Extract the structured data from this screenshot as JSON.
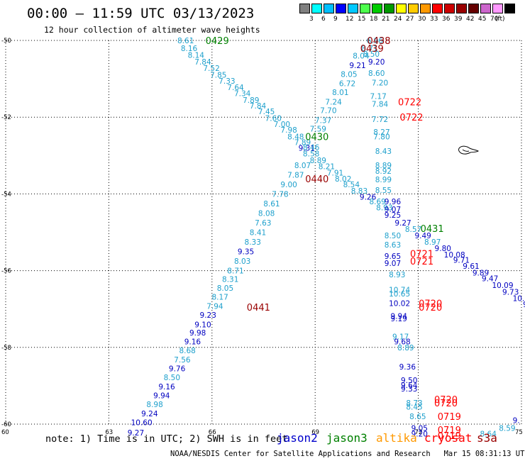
{
  "header": {
    "title": "00:00 – 11:59 UTC 03/13/2023",
    "subtitle": "12 hour collection of altimeter wave heights"
  },
  "colorbar": {
    "unit": "(ft)",
    "colors": [
      "#808080",
      "#00ffff",
      "#00bfff",
      "#0000ff",
      "#00c8ff",
      "#4cff4c",
      "#00cc00",
      "#009900",
      "#ffff00",
      "#ffcc00",
      "#ff9900",
      "#ff0000",
      "#cc0000",
      "#990000",
      "#660000",
      "#cc66cc",
      "#ff99ff",
      "#000000"
    ],
    "labels": [
      "3",
      "6",
      "9",
      "12",
      "15",
      "18",
      "21",
      "24",
      "27",
      "30",
      "33",
      "36",
      "39",
      "42",
      "45",
      "70"
    ]
  },
  "axes": {
    "lat_labels": [
      "-50",
      "-52",
      "-54",
      "-56",
      "-58",
      "-60"
    ],
    "lon_labels": [
      "60",
      "63",
      "66",
      "69",
      "72",
      "75"
    ]
  },
  "map_colors": {
    "cyan": "#1ea0cc",
    "blue": "#0000c0",
    "green": "#008000",
    "red": "#ff0000",
    "darkred": "#990000"
  },
  "passes": [
    {
      "text": "0429",
      "color": "green",
      "lon": 66.1,
      "lat": -50.0
    },
    {
      "text": "0438",
      "color": "darkred",
      "lon": 70.8,
      "lat": -50.0
    },
    {
      "text": "0439",
      "color": "darkred",
      "lon": 70.6,
      "lat": -50.2
    },
    {
      "text": "0722",
      "color": "red",
      "lon": 71.7,
      "lat": -51.6
    },
    {
      "text": "0722",
      "color": "red",
      "lon": 71.75,
      "lat": -52.0
    },
    {
      "text": "0430",
      "color": "green",
      "lon": 69.0,
      "lat": -52.5
    },
    {
      "text": "0440",
      "color": "darkred",
      "lon": 69.0,
      "lat": -53.6
    },
    {
      "text": "0431",
      "color": "green",
      "lon": 72.35,
      "lat": -54.9
    },
    {
      "text": "0721",
      "color": "red",
      "lon": 72.05,
      "lat": -55.55
    },
    {
      "text": "0721",
      "color": "red",
      "lon": 72.05,
      "lat": -55.75
    },
    {
      "text": "0441",
      "color": "darkred",
      "lon": 67.3,
      "lat": -56.95
    },
    {
      "text": "0720",
      "color": "red",
      "lon": 72.3,
      "lat": -56.85
    },
    {
      "text": "0720",
      "color": "red",
      "lon": 72.3,
      "lat": -56.95
    },
    {
      "text": "0720",
      "color": "red",
      "lon": 72.75,
      "lat": -59.35
    },
    {
      "text": "0720",
      "color": "red",
      "lon": 72.75,
      "lat": -59.45
    },
    {
      "text": "0719",
      "color": "red",
      "lon": 72.85,
      "lat": -59.8
    },
    {
      "text": "0719",
      "color": "red",
      "lon": 72.85,
      "lat": -60.15
    },
    {
      "text": "0719",
      "color": "red",
      "lon": 72.85,
      "lat": -60.3
    }
  ],
  "points": [
    {
      "v": "8.61",
      "c": "cyan",
      "lon": 65.2,
      "lat": -50.0
    },
    {
      "v": "8.16",
      "c": "cyan",
      "lon": 65.3,
      "lat": -50.2
    },
    {
      "v": "8.14",
      "c": "cyan",
      "lon": 65.5,
      "lat": -50.38
    },
    {
      "v": "7.84",
      "c": "cyan",
      "lon": 65.7,
      "lat": -50.55
    },
    {
      "v": "7.52",
      "c": "cyan",
      "lon": 65.95,
      "lat": -50.72
    },
    {
      "v": "7.85",
      "c": "cyan",
      "lon": 66.15,
      "lat": -50.9
    },
    {
      "v": "7.33",
      "c": "cyan",
      "lon": 66.4,
      "lat": -51.05
    },
    {
      "v": "7.64",
      "c": "cyan",
      "lon": 66.65,
      "lat": -51.22
    },
    {
      "v": "7.34",
      "c": "cyan",
      "lon": 66.85,
      "lat": -51.38
    },
    {
      "v": "7.89",
      "c": "cyan",
      "lon": 67.1,
      "lat": -51.55
    },
    {
      "v": "7.84",
      "c": "cyan",
      "lon": 67.3,
      "lat": -51.7
    },
    {
      "v": "7.45",
      "c": "cyan",
      "lon": 67.55,
      "lat": -51.85
    },
    {
      "v": "7.60",
      "c": "cyan",
      "lon": 67.75,
      "lat": -52.02
    },
    {
      "v": "7.00",
      "c": "cyan",
      "lon": 68.0,
      "lat": -52.18
    },
    {
      "v": "7.98",
      "c": "cyan",
      "lon": 68.2,
      "lat": -52.33
    },
    {
      "v": "8.48",
      "c": "cyan",
      "lon": 68.4,
      "lat": -52.5
    },
    {
      "v": "7.89",
      "c": "cyan",
      "lon": 68.6,
      "lat": -52.65
    },
    {
      "v": "9.31",
      "c": "blue",
      "lon": 68.72,
      "lat": -52.8
    },
    {
      "v": "8.58",
      "c": "cyan",
      "lon": 68.85,
      "lat": -52.95
    },
    {
      "v": "8.89",
      "c": "cyan",
      "lon": 69.05,
      "lat": -53.12
    },
    {
      "v": "8.21",
      "c": "cyan",
      "lon": 69.3,
      "lat": -53.28
    },
    {
      "v": "7.91",
      "c": "cyan",
      "lon": 69.55,
      "lat": -53.45
    },
    {
      "v": "8.02",
      "c": "cyan",
      "lon": 69.78,
      "lat": -53.6
    },
    {
      "v": "8.54",
      "c": "cyan",
      "lon": 70.02,
      "lat": -53.75
    },
    {
      "v": "8.83",
      "c": "cyan",
      "lon": 70.25,
      "lat": -53.92
    },
    {
      "v": "9.26",
      "c": "blue",
      "lon": 70.5,
      "lat": -54.08
    },
    {
      "v": "8.69",
      "c": "cyan",
      "lon": 70.78,
      "lat": -54.2
    },
    {
      "v": "8.93",
      "c": "cyan",
      "lon": 70.98,
      "lat": -54.35
    },
    {
      "v": "9.96",
      "c": "blue",
      "lon": 71.22,
      "lat": -54.2
    },
    {
      "v": "9.07",
      "c": "blue",
      "lon": 71.22,
      "lat": -54.4
    },
    {
      "v": "9.25",
      "c": "blue",
      "lon": 71.22,
      "lat": -54.55
    },
    {
      "v": "9.27",
      "c": "blue",
      "lon": 71.52,
      "lat": -54.75
    },
    {
      "v": "8.57",
      "c": "cyan",
      "lon": 71.82,
      "lat": -54.92
    },
    {
      "v": "9.49",
      "c": "blue",
      "lon": 72.1,
      "lat": -55.08
    },
    {
      "v": "8.97",
      "c": "cyan",
      "lon": 72.38,
      "lat": -55.25
    },
    {
      "v": "9.80",
      "c": "blue",
      "lon": 72.68,
      "lat": -55.42
    },
    {
      "v": "10.08",
      "c": "blue",
      "lon": 72.95,
      "lat": -55.58
    },
    {
      "v": "9.71",
      "c": "blue",
      "lon": 73.22,
      "lat": -55.72
    },
    {
      "v": "9.61",
      "c": "blue",
      "lon": 73.5,
      "lat": -55.88
    },
    {
      "v": "9.89",
      "c": "blue",
      "lon": 73.78,
      "lat": -56.05
    },
    {
      "v": "9.47",
      "c": "blue",
      "lon": 74.05,
      "lat": -56.2
    },
    {
      "v": "10.09",
      "c": "blue",
      "lon": 74.35,
      "lat": -56.38
    },
    {
      "v": "9.73",
      "c": "blue",
      "lon": 74.65,
      "lat": -56.55
    },
    {
      "v": "10.63",
      "c": "blue",
      "lon": 74.95,
      "lat": -56.72
    },
    {
      "v": "9.96",
      "c": "blue",
      "lon": 75.25,
      "lat": -56.88
    },
    {
      "v": "6.96",
      "c": "cyan",
      "lon": 70.7,
      "lat": -50.0
    },
    {
      "v": "8.71",
      "c": "cyan",
      "lon": 70.55,
      "lat": -50.2
    },
    {
      "v": "8.04",
      "c": "cyan",
      "lon": 70.3,
      "lat": -50.4
    },
    {
      "v": "9.21",
      "c": "blue",
      "lon": 70.2,
      "lat": -50.65
    },
    {
      "v": "8.05",
      "c": "cyan",
      "lon": 69.95,
      "lat": -50.88
    },
    {
      "v": "6.72",
      "c": "cyan",
      "lon": 69.9,
      "lat": -51.12
    },
    {
      "v": "8.01",
      "c": "cyan",
      "lon": 69.7,
      "lat": -51.35
    },
    {
      "v": "7.24",
      "c": "cyan",
      "lon": 69.5,
      "lat": -51.6
    },
    {
      "v": "7.70",
      "c": "cyan",
      "lon": 69.35,
      "lat": -51.82
    },
    {
      "v": "7.37",
      "c": "cyan",
      "lon": 69.2,
      "lat": -52.08
    },
    {
      "v": "7.59",
      "c": "cyan",
      "lon": 69.05,
      "lat": -52.3
    },
    {
      "v": "8.46",
      "c": "cyan",
      "lon": 68.85,
      "lat": -52.78
    },
    {
      "v": "8.07",
      "c": "cyan",
      "lon": 68.6,
      "lat": -53.25
    },
    {
      "v": "7.87",
      "c": "cyan",
      "lon": 68.4,
      "lat": -53.5
    },
    {
      "v": "9.00",
      "c": "cyan",
      "lon": 68.2,
      "lat": -53.75
    },
    {
      "v": "7.78",
      "c": "cyan",
      "lon": 67.95,
      "lat": -54.0
    },
    {
      "v": "8.61",
      "c": "cyan",
      "lon": 67.7,
      "lat": -54.25
    },
    {
      "v": "8.08",
      "c": "cyan",
      "lon": 67.55,
      "lat": -54.5
    },
    {
      "v": "7.63",
      "c": "cyan",
      "lon": 67.45,
      "lat": -54.75
    },
    {
      "v": "8.41",
      "c": "cyan",
      "lon": 67.3,
      "lat": -55.0
    },
    {
      "v": "8.33",
      "c": "cyan",
      "lon": 67.15,
      "lat": -55.25
    },
    {
      "v": "9.35",
      "c": "blue",
      "lon": 66.95,
      "lat": -55.5
    },
    {
      "v": "8.03",
      "c": "cyan",
      "lon": 66.85,
      "lat": -55.75
    },
    {
      "v": "8.71",
      "c": "cyan",
      "lon": 66.65,
      "lat": -56.0
    },
    {
      "v": "8.31",
      "c": "cyan",
      "lon": 66.5,
      "lat": -56.22
    },
    {
      "v": "8.05",
      "c": "cyan",
      "lon": 66.35,
      "lat": -56.45
    },
    {
      "v": "8.17",
      "c": "cyan",
      "lon": 66.2,
      "lat": -56.68
    },
    {
      "v": "7.94",
      "c": "cyan",
      "lon": 66.05,
      "lat": -56.92
    },
    {
      "v": "9.23",
      "c": "blue",
      "lon": 65.85,
      "lat": -57.15
    },
    {
      "v": "9.10",
      "c": "blue",
      "lon": 65.7,
      "lat": -57.4
    },
    {
      "v": "9.98",
      "c": "blue",
      "lon": 65.55,
      "lat": -57.62
    },
    {
      "v": "9.16",
      "c": "blue",
      "lon": 65.4,
      "lat": -57.85
    },
    {
      "v": "8.68",
      "c": "cyan",
      "lon": 65.25,
      "lat": -58.08
    },
    {
      "v": "7.56",
      "c": "cyan",
      "lon": 65.1,
      "lat": -58.32
    },
    {
      "v": "9.76",
      "c": "blue",
      "lon": 64.95,
      "lat": -58.55
    },
    {
      "v": "8.50",
      "c": "cyan",
      "lon": 64.8,
      "lat": -58.78
    },
    {
      "v": "9.16",
      "c": "blue",
      "lon": 64.65,
      "lat": -59.02
    },
    {
      "v": "9.94",
      "c": "blue",
      "lon": 64.5,
      "lat": -59.25
    },
    {
      "v": "8.98",
      "c": "cyan",
      "lon": 64.3,
      "lat": -59.48
    },
    {
      "v": "9.24",
      "c": "blue",
      "lon": 64.15,
      "lat": -59.72
    },
    {
      "v": "10.60",
      "c": "blue",
      "lon": 63.85,
      "lat": -59.95
    },
    {
      "v": "9.27",
      "c": "blue",
      "lon": 63.75,
      "lat": -60.22
    },
    {
      "v": "8.50",
      "c": "cyan",
      "lon": 70.6,
      "lat": -50.35
    },
    {
      "v": "9.20",
      "c": "blue",
      "lon": 70.75,
      "lat": -50.55
    },
    {
      "v": "8.60",
      "c": "cyan",
      "lon": 70.75,
      "lat": -50.85
    },
    {
      "v": "7.20",
      "c": "cyan",
      "lon": 70.85,
      "lat": -51.1
    },
    {
      "v": "7.17",
      "c": "cyan",
      "lon": 70.8,
      "lat": -51.45
    },
    {
      "v": "7.84",
      "c": "cyan",
      "lon": 70.85,
      "lat": -51.65
    },
    {
      "v": "7.72",
      "c": "cyan",
      "lon": 70.85,
      "lat": -52.05
    },
    {
      "v": "8.27",
      "c": "cyan",
      "lon": 70.9,
      "lat": -52.38
    },
    {
      "v": "7.80",
      "c": "cyan",
      "lon": 70.9,
      "lat": -52.5
    },
    {
      "v": "8.43",
      "c": "cyan",
      "lon": 70.95,
      "lat": -52.88
    },
    {
      "v": "8.89",
      "c": "cyan",
      "lon": 70.95,
      "lat": -53.25
    },
    {
      "v": "8.92",
      "c": "cyan",
      "lon": 70.95,
      "lat": -53.4
    },
    {
      "v": "8.99",
      "c": "cyan",
      "lon": 70.95,
      "lat": -53.62
    },
    {
      "v": "8.55",
      "c": "cyan",
      "lon": 70.95,
      "lat": -53.9
    },
    {
      "v": "8.50",
      "c": "cyan",
      "lon": 71.22,
      "lat": -55.08
    },
    {
      "v": "8.63",
      "c": "cyan",
      "lon": 71.22,
      "lat": -55.32
    },
    {
      "v": "9.65",
      "c": "blue",
      "lon": 71.22,
      "lat": -55.62
    },
    {
      "v": "9.07",
      "c": "blue",
      "lon": 71.22,
      "lat": -55.8
    },
    {
      "v": "8.93",
      "c": "cyan",
      "lon": 71.35,
      "lat": -56.1
    },
    {
      "v": "10.74",
      "c": "cyan",
      "lon": 71.35,
      "lat": -56.5
    },
    {
      "v": "10.65",
      "c": "cyan",
      "lon": 71.35,
      "lat": -56.6
    },
    {
      "v": "10.02",
      "c": "blue",
      "lon": 71.35,
      "lat": -56.85
    },
    {
      "v": "9.94",
      "c": "blue",
      "lon": 71.4,
      "lat": -57.18
    },
    {
      "v": "9.19",
      "c": "blue",
      "lon": 71.4,
      "lat": -57.25
    },
    {
      "v": "9.17",
      "c": "cyan",
      "lon": 71.45,
      "lat": -57.72
    },
    {
      "v": "9.68",
      "c": "blue",
      "lon": 71.5,
      "lat": -57.85
    },
    {
      "v": "8.89",
      "c": "cyan",
      "lon": 71.6,
      "lat": -58.0
    },
    {
      "v": "9.36",
      "c": "blue",
      "lon": 71.65,
      "lat": -58.5
    },
    {
      "v": "9.50",
      "c": "blue",
      "lon": 71.7,
      "lat": -58.85
    },
    {
      "v": "9.64",
      "c": "blue",
      "lon": 71.7,
      "lat": -58.98
    },
    {
      "v": "9.33",
      "c": "blue",
      "lon": 71.7,
      "lat": -59.08
    },
    {
      "v": "8.73",
      "c": "cyan",
      "lon": 71.85,
      "lat": -59.45
    },
    {
      "v": "8.45",
      "c": "cyan",
      "lon": 71.85,
      "lat": -59.55
    },
    {
      "v": "8.65",
      "c": "cyan",
      "lon": 71.95,
      "lat": -59.8
    },
    {
      "v": "9.05",
      "c": "blue",
      "lon": 72.0,
      "lat": -60.1
    },
    {
      "v": "9.20",
      "c": "blue",
      "lon": 72.0,
      "lat": -60.25
    },
    {
      "v": "8.59",
      "c": "cyan",
      "lon": 74.55,
      "lat": -60.1
    },
    {
      "v": "8.64",
      "c": "cyan",
      "lon": 74.0,
      "lat": -60.25
    },
    {
      "v": "9.",
      "c": "blue",
      "lon": 74.95,
      "lat": -59.9
    }
  ],
  "legend": {
    "note": "note: 1) Time is in UTC; 2) SWH is in feet",
    "satellites": [
      {
        "name": "jason2",
        "color": "#0000cc"
      },
      {
        "name": "jason3",
        "color": "#008000"
      },
      {
        "name": "altika",
        "color": "#ff9900"
      },
      {
        "name": "cryosat",
        "color": "#ff0000"
      },
      {
        "name": "s3a",
        "color": "#990000"
      }
    ]
  },
  "footer": "NOAA/NESDIS Center for Satellite Applications and Research   Mar 15 08:31:13 UTC 2023"
}
